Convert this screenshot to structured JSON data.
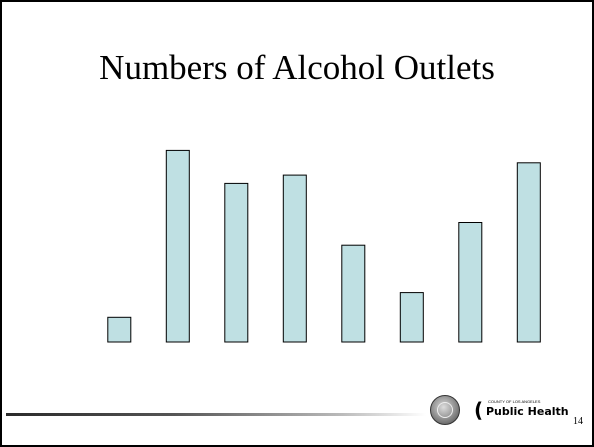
{
  "slide": {
    "page_number": "14",
    "logo": {
      "small_text": "COUNTY OF LOS ANGELES",
      "main_text": "Public Health"
    }
  },
  "chart_data": {
    "type": "bar",
    "title": "Numbers of Alcohol Outlets",
    "categories": [
      "",
      "",
      "",
      "",
      "",
      "",
      "",
      ""
    ],
    "values": [
      12,
      93,
      77,
      81,
      47,
      24,
      58,
      87
    ],
    "ylim": [
      0,
      100
    ],
    "grid": false,
    "legend": "none",
    "colors": {
      "bar_fill": "#bfe0e3",
      "bar_stroke": "#000000"
    }
  }
}
